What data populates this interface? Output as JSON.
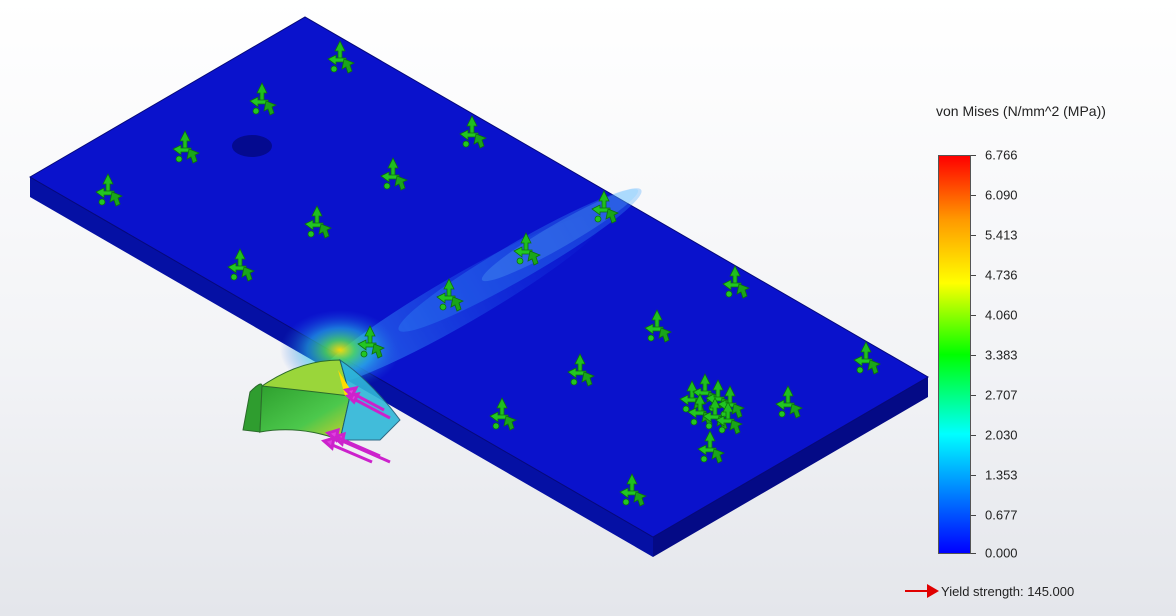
{
  "legend": {
    "title": "von Mises (N/mm^2 (MPa))",
    "ticks": [
      "6.766",
      "6.090",
      "5.413",
      "4.736",
      "4.060",
      "3.383",
      "2.707",
      "2.030",
      "1.353",
      "0.677",
      "0.000"
    ],
    "colors": {
      "max": "#ff0000",
      "high": "#ff9900",
      "mid_high": "#ffff00",
      "mid": "#00ff00",
      "mid_low": "#00ffff",
      "low": "#0000ff"
    }
  },
  "yield": {
    "label": "Yield strength: 145.000",
    "marker_color": "#e00000"
  },
  "model": {
    "plate_color": "#0a12cc",
    "fixture_icon": "green-fixture-arrows-icon",
    "load_icon": "magenta-force-arrows-icon"
  }
}
